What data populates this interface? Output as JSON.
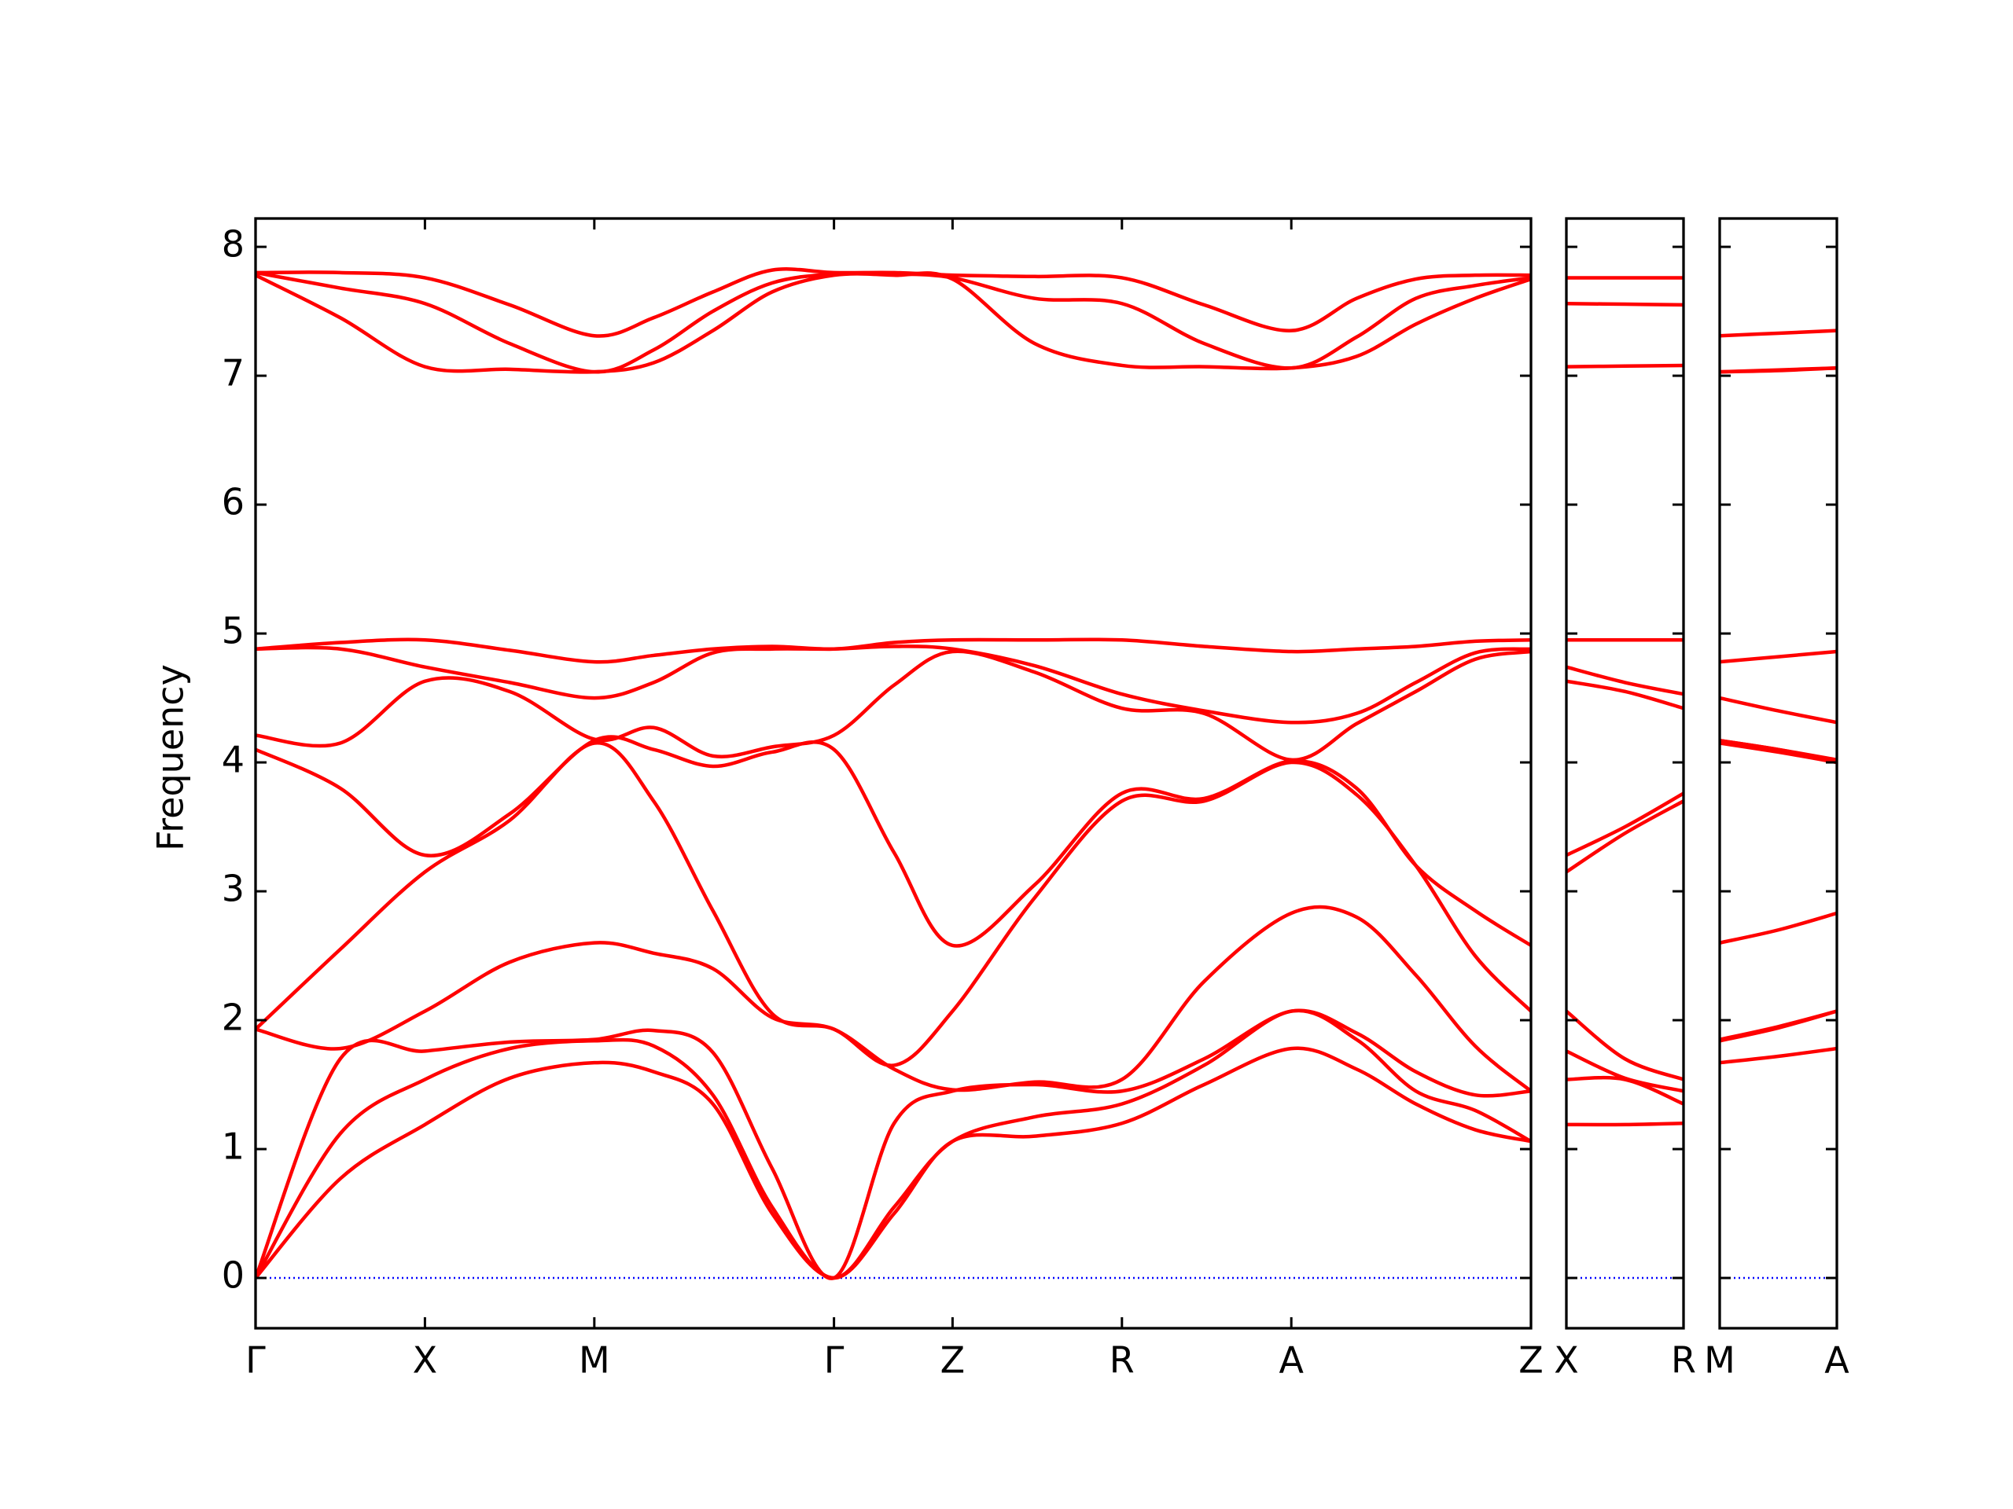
{
  "chart_data": [
    {
      "type": "line",
      "ylabel": "Frequency",
      "color": "#ff0000",
      "zero_line": {
        "value": 0,
        "color": "#0000ff"
      },
      "x": [
        0,
        0.5,
        1,
        1.5,
        2,
        2.35,
        2.7,
        3.05,
        3.415,
        3.77,
        4.115,
        4.6,
        5.115,
        5.6,
        6.115,
        6.5,
        6.85,
        7.2,
        7.53
      ],
      "xlim": [
        0,
        7.53
      ],
      "xticks": [
        {
          "value": 0,
          "label": "Γ"
        },
        {
          "value": 1,
          "label": "X"
        },
        {
          "value": 2,
          "label": "M"
        },
        {
          "value": 3.415,
          "label": "Γ"
        },
        {
          "value": 4.115,
          "label": "Z"
        },
        {
          "value": 5.115,
          "label": "R"
        },
        {
          "value": 6.115,
          "label": "A"
        },
        {
          "value": 7.53,
          "label": "Z"
        }
      ],
      "ylim": [
        -0.39,
        8.22
      ],
      "yticks": [
        0,
        1,
        2,
        3,
        4,
        5,
        6,
        7,
        8
      ],
      "series": [
        {
          "values": [
            0,
            0.77,
            1.19,
            1.55,
            1.67,
            1.6,
            1.35,
            0.5,
            0,
            0.5,
            1.06,
            1.1,
            1.2,
            1.5,
            1.78,
            1.62,
            1.35,
            1.15,
            1.06
          ]
        },
        {
          "values": [
            0,
            1.12,
            1.54,
            1.78,
            1.84,
            1.8,
            1.42,
            0.55,
            0,
            0.55,
            1.06,
            1.25,
            1.35,
            1.65,
            2.07,
            1.85,
            1.45,
            1.3,
            1.06
          ]
        },
        {
          "values": [
            0,
            1.7,
            1.76,
            1.83,
            1.85,
            1.92,
            1.75,
            0.85,
            0,
            1.2,
            1.45,
            1.5,
            1.45,
            1.7,
            2.07,
            1.9,
            1.6,
            1.42,
            1.45
          ]
        },
        {
          "values": [
            1.93,
            1.78,
            2.07,
            2.45,
            2.6,
            2.52,
            2.4,
            2.02,
            1.93,
            1.62,
            1.46,
            1.52,
            1.54,
            2.3,
            2.83,
            2.8,
            2.35,
            1.8,
            1.45
          ]
        },
        {
          "values": [
            1.93,
            2.55,
            3.15,
            3.55,
            4.15,
            3.7,
            2.85,
            2.05,
            1.93,
            1.65,
            2.07,
            2.95,
            3.7,
            3.7,
            4.0,
            3.75,
            3.2,
            2.5,
            2.07
          ]
        },
        {
          "values": [
            4.1,
            3.8,
            3.28,
            3.6,
            4.17,
            4.1,
            3.97,
            4.08,
            4.1,
            3.3,
            2.58,
            3.05,
            3.76,
            3.72,
            4.01,
            3.8,
            3.2,
            2.85,
            2.58
          ]
        },
        {
          "values": [
            4.21,
            4.15,
            4.63,
            4.55,
            4.18,
            4.27,
            4.05,
            4.12,
            4.21,
            4.6,
            4.86,
            4.7,
            4.42,
            4.38,
            4.02,
            4.3,
            4.55,
            4.8,
            4.86
          ]
        },
        {
          "values": [
            4.88,
            4.88,
            4.74,
            4.62,
            4.5,
            4.62,
            4.85,
            4.88,
            4.88,
            4.9,
            4.88,
            4.75,
            4.53,
            4.4,
            4.31,
            4.38,
            4.62,
            4.85,
            4.88
          ]
        },
        {
          "values": [
            4.88,
            4.93,
            4.95,
            4.87,
            4.78,
            4.83,
            4.88,
            4.9,
            4.88,
            4.93,
            4.95,
            4.95,
            4.95,
            4.9,
            4.86,
            4.88,
            4.9,
            4.94,
            4.95
          ]
        },
        {
          "values": [
            7.78,
            7.45,
            7.07,
            7.05,
            7.03,
            7.1,
            7.35,
            7.65,
            7.78,
            7.78,
            7.75,
            7.25,
            7.08,
            7.07,
            7.06,
            7.15,
            7.4,
            7.6,
            7.75
          ]
        },
        {
          "values": [
            7.8,
            7.68,
            7.56,
            7.25,
            7.03,
            7.2,
            7.5,
            7.72,
            7.79,
            7.79,
            7.76,
            7.6,
            7.56,
            7.25,
            7.06,
            7.3,
            7.6,
            7.7,
            7.76
          ]
        },
        {
          "values": [
            7.8,
            7.8,
            7.76,
            7.55,
            7.31,
            7.45,
            7.65,
            7.82,
            7.8,
            7.8,
            7.78,
            7.77,
            7.76,
            7.55,
            7.35,
            7.6,
            7.75,
            7.78,
            7.78
          ]
        }
      ]
    },
    {
      "type": "line",
      "color": "#ff0000",
      "zero_line": {
        "value": 0,
        "color": "#0000ff"
      },
      "x": [
        0,
        0.35,
        0.7
      ],
      "xlim": [
        0,
        0.7
      ],
      "xticks": [
        {
          "value": 0,
          "label": "X"
        },
        {
          "value": 0.7,
          "label": "R"
        }
      ],
      "ylim": [
        -0.39,
        8.22
      ],
      "yticks": [
        0,
        1,
        2,
        3,
        4,
        5,
        6,
        7,
        8
      ],
      "series": [
        {
          "values": [
            1.19,
            1.19,
            1.2
          ]
        },
        {
          "values": [
            1.54,
            1.54,
            1.35
          ]
        },
        {
          "values": [
            1.76,
            1.55,
            1.45
          ]
        },
        {
          "values": [
            2.07,
            1.7,
            1.54
          ]
        },
        {
          "values": [
            3.15,
            3.45,
            3.7
          ]
        },
        {
          "values": [
            3.28,
            3.5,
            3.76
          ]
        },
        {
          "values": [
            4.63,
            4.55,
            4.42
          ]
        },
        {
          "values": [
            4.74,
            4.62,
            4.53
          ]
        },
        {
          "values": [
            4.95,
            4.95,
            4.95
          ]
        },
        {
          "values": [
            7.07,
            7.075,
            7.08
          ]
        },
        {
          "values": [
            7.56,
            7.555,
            7.55
          ]
        },
        {
          "values": [
            7.76,
            7.76,
            7.76
          ]
        }
      ]
    },
    {
      "type": "line",
      "color": "#ff0000",
      "zero_line": {
        "value": 0,
        "color": "#0000ff"
      },
      "x": [
        0,
        0.35,
        0.7
      ],
      "xlim": [
        0,
        0.7
      ],
      "xticks": [
        {
          "value": 0,
          "label": "M"
        },
        {
          "value": 0.7,
          "label": "A"
        }
      ],
      "ylim": [
        -0.39,
        8.22
      ],
      "yticks": [
        0,
        1,
        2,
        3,
        4,
        5,
        6,
        7,
        8
      ],
      "series": [
        {
          "values": [
            1.67,
            1.72,
            1.78
          ]
        },
        {
          "values": [
            1.84,
            1.94,
            2.07
          ]
        },
        {
          "values": [
            1.85,
            1.95,
            2.07
          ]
        },
        {
          "values": [
            2.6,
            2.7,
            2.83
          ]
        },
        {
          "values": [
            4.15,
            4.08,
            4.0
          ]
        },
        {
          "values": [
            4.17,
            4.1,
            4.01
          ]
        },
        {
          "values": [
            4.17,
            4.1,
            4.02
          ]
        },
        {
          "values": [
            4.5,
            4.4,
            4.31
          ]
        },
        {
          "values": [
            4.78,
            4.82,
            4.86
          ]
        },
        {
          "values": [
            7.03,
            7.04,
            7.06
          ]
        },
        {
          "values": [
            7.03,
            7.045,
            7.06
          ]
        },
        {
          "values": [
            7.31,
            7.33,
            7.35
          ]
        }
      ]
    }
  ]
}
